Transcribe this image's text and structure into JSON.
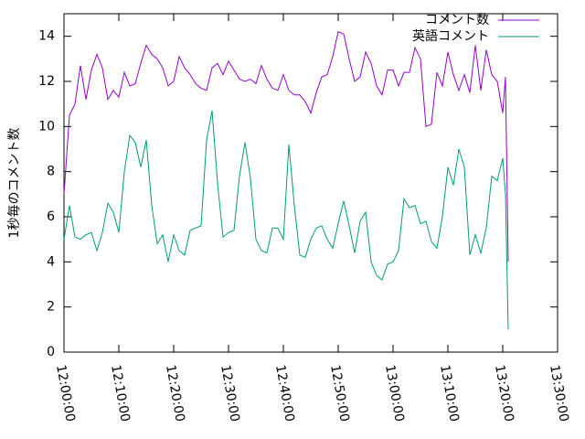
{
  "chart_data": {
    "type": "line",
    "ylabel": "1秒毎のコメント数",
    "x": [
      "12:00:00",
      "12:01:00",
      "12:02:00",
      "12:03:00",
      "12:04:00",
      "12:05:00",
      "12:06:00",
      "12:07:00",
      "12:08:00",
      "12:09:00",
      "12:10:00",
      "12:11:00",
      "12:12:00",
      "12:13:00",
      "12:14:00",
      "12:15:00",
      "12:16:00",
      "12:17:00",
      "12:18:00",
      "12:19:00",
      "12:20:00",
      "12:21:00",
      "12:22:00",
      "12:23:00",
      "12:24:00",
      "12:25:00",
      "12:26:00",
      "12:27:00",
      "12:28:00",
      "12:29:00",
      "12:30:00",
      "12:31:00",
      "12:32:00",
      "12:33:00",
      "12:34:00",
      "12:35:00",
      "12:36:00",
      "12:37:00",
      "12:38:00",
      "12:39:00",
      "12:40:00",
      "12:41:00",
      "12:42:00",
      "12:43:00",
      "12:44:00",
      "12:45:00",
      "12:46:00",
      "12:47:00",
      "12:48:00",
      "12:49:00",
      "12:50:00",
      "12:51:00",
      "12:52:00",
      "12:53:00",
      "12:54:00",
      "12:55:00",
      "12:56:00",
      "12:57:00",
      "12:58:00",
      "12:59:00",
      "13:00:00",
      "13:01:00",
      "13:02:00",
      "13:03:00",
      "13:04:00",
      "13:05:00",
      "13:06:00",
      "13:07:00",
      "13:08:00",
      "13:09:00",
      "13:10:00",
      "13:11:00",
      "13:12:00",
      "13:13:00",
      "13:14:00",
      "13:15:00",
      "13:16:00",
      "13:17:00",
      "13:18:00",
      "13:19:00",
      "13:20:00",
      "13:20:30",
      "13:21:00"
    ],
    "series": [
      {
        "name": "コメント数",
        "color": "#9400d3",
        "values": [
          7,
          10.5,
          11,
          12.7,
          11.2,
          12.5,
          13.2,
          12.6,
          11.2,
          11.6,
          11.3,
          12.4,
          11.8,
          11.9,
          12.8,
          13.6,
          13.2,
          13,
          12.6,
          11.8,
          12,
          13.1,
          12.6,
          12.3,
          11.9,
          11.7,
          11.6,
          12.6,
          12.8,
          12.3,
          12.9,
          12.5,
          12.1,
          12,
          12.1,
          11.9,
          12.7,
          12.1,
          11.7,
          11.6,
          12.3,
          11.6,
          11.4,
          11.4,
          11.1,
          10.6,
          11.5,
          12.2,
          12.3,
          13.1,
          14.2,
          14.1,
          13,
          12,
          12.2,
          13.3,
          12.8,
          11.8,
          11.4,
          12.5,
          12.5,
          11.8,
          12.4,
          12.4,
          13.5,
          13,
          10,
          10.1,
          12.4,
          11.8,
          13.3,
          12.3,
          11.6,
          12.3,
          11.5,
          13.6,
          11.6,
          13.4,
          12.3,
          12,
          10.6,
          12.2,
          4
        ]
      },
      {
        "name": "英語コメント",
        "color": "#009e73",
        "values": [
          5,
          6.5,
          5.1,
          5,
          5.2,
          5.3,
          4.5,
          5.3,
          6.6,
          6.2,
          5.3,
          8,
          9.6,
          9.3,
          8.2,
          9.4,
          6.5,
          4.8,
          5.2,
          4,
          5.2,
          4.5,
          4.3,
          5.4,
          5.5,
          5.6,
          9.4,
          10.7,
          7.5,
          5.1,
          5.3,
          5.4,
          7.8,
          9.3,
          7.7,
          5,
          4.5,
          4.4,
          5.5,
          5.5,
          5,
          9.2,
          6.5,
          4.3,
          4.2,
          5,
          5.5,
          5.6,
          5,
          4.6,
          5.7,
          6.7,
          5.6,
          4.4,
          5.8,
          6.2,
          4,
          3.4,
          3.2,
          3.9,
          4,
          4.5,
          6.8,
          6.4,
          6.5,
          5.7,
          5.8,
          4.9,
          4.6,
          6,
          8.2,
          7.4,
          9,
          8.2,
          4.3,
          5.2,
          4.4,
          5.5,
          7.8,
          7.6,
          8.6,
          7,
          1
        ]
      }
    ],
    "xlim": [
      "12:00:00",
      "13:30:00"
    ],
    "xticks": [
      "12:00:00",
      "12:10:00",
      "12:20:00",
      "12:30:00",
      "12:40:00",
      "12:50:00",
      "13:00:00",
      "13:10:00",
      "13:20:00",
      "13:30:00"
    ],
    "ylim": [
      0,
      15
    ],
    "yticks": [
      0,
      2,
      4,
      6,
      8,
      10,
      12,
      14
    ],
    "legend": "top-right"
  }
}
